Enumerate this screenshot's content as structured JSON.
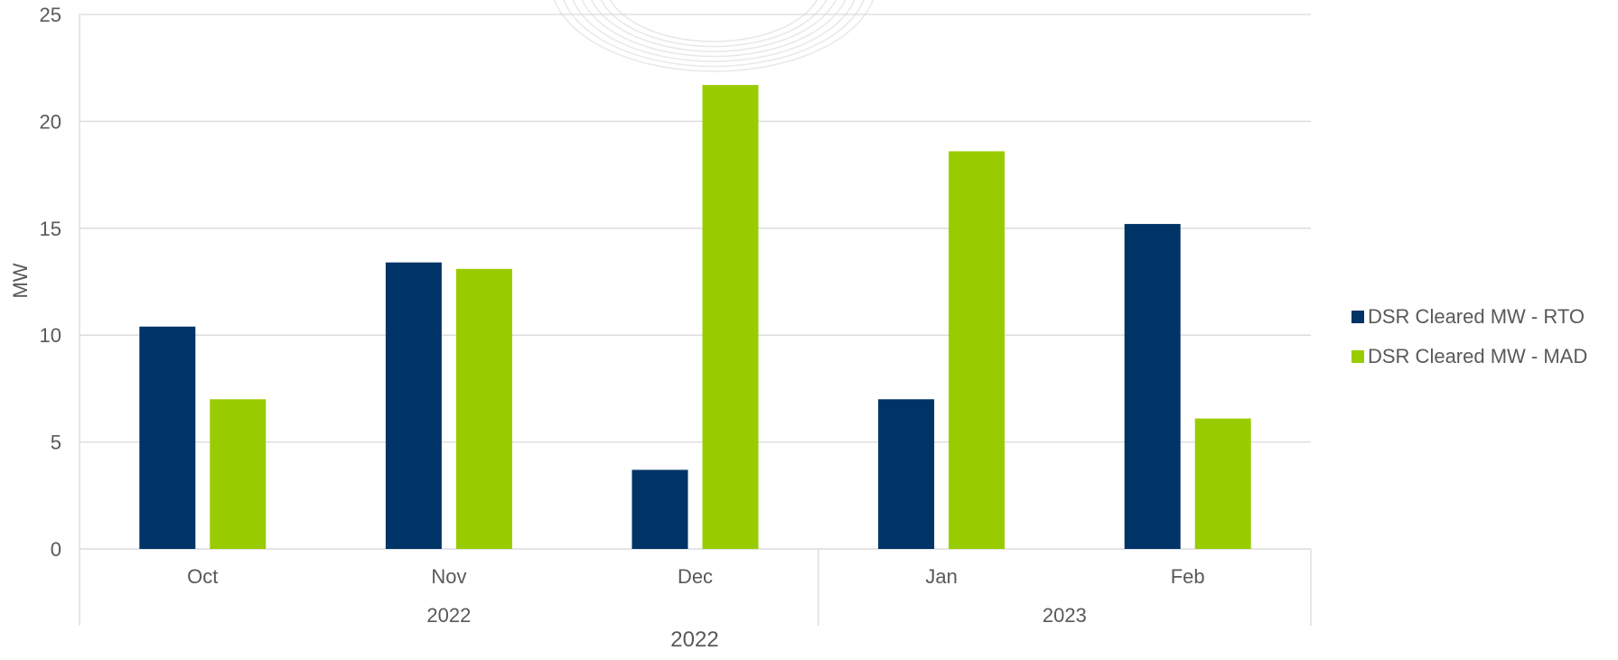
{
  "chart_data": {
    "type": "bar",
    "categories": [
      "Oct",
      "Nov",
      "Dec",
      "Jan",
      "Feb"
    ],
    "year_groups": [
      {
        "label": "2022",
        "span": [
          "Oct",
          "Nov",
          "Dec"
        ]
      },
      {
        "label": "2023",
        "span": [
          "Jan",
          "Feb"
        ]
      }
    ],
    "x_outer_label": "2022",
    "ylabel": "MW",
    "ylim": [
      0,
      25
    ],
    "yticks": [
      0,
      5,
      10,
      15,
      20,
      25
    ],
    "grid": true,
    "legend_position": "right",
    "series": [
      {
        "name": "DSR Cleared MW - RTO",
        "color": "#003366",
        "values": [
          10.4,
          13.4,
          3.7,
          7.0,
          15.2
        ]
      },
      {
        "name": "DSR Cleared MW - MAD",
        "color": "#99CC00",
        "values": [
          7.0,
          13.1,
          21.7,
          18.6,
          6.1
        ]
      }
    ]
  }
}
